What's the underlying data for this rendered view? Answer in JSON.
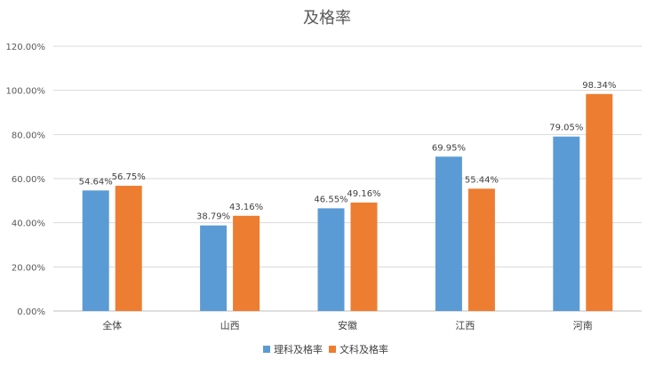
{
  "chart_data": {
    "type": "bar",
    "title": "及格率",
    "categories": [
      "全体",
      "山西",
      "安徽",
      "江西",
      "河南"
    ],
    "series": [
      {
        "name": "理科及格率",
        "color": "#5b9bd5",
        "values": [
          54.64,
          38.79,
          46.55,
          69.95,
          79.05
        ]
      },
      {
        "name": "文科及格率",
        "color": "#ed7d31",
        "values": [
          56.75,
          43.16,
          49.16,
          55.44,
          98.34
        ]
      }
    ],
    "data_labels": [
      [
        "54.64%",
        "38.79%",
        "46.55%",
        "69.95%",
        "79.05%"
      ],
      [
        "56.75%",
        "43.16%",
        "49.16%",
        "55.44%",
        "98.34%"
      ]
    ],
    "ylim": [
      0,
      120
    ],
    "yticks": [
      0,
      20,
      40,
      60,
      80,
      100,
      120
    ],
    "ytick_labels": [
      "0.00%",
      "20.00%",
      "40.00%",
      "60.00%",
      "80.00%",
      "100.00%",
      "120.00%"
    ],
    "grid": true,
    "legend_position": "bottom"
  }
}
